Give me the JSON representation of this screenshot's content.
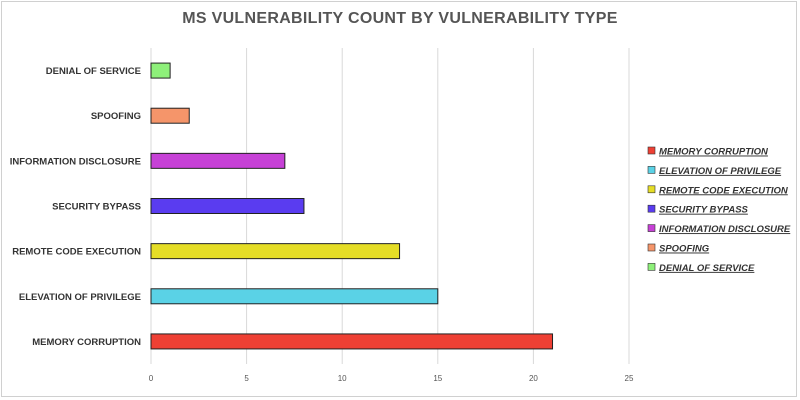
{
  "chart_data": {
    "type": "bar",
    "orientation": "horizontal",
    "title": "MS VULNERABILITY COUNT BY VULNERABILITY TYPE",
    "xlabel": "",
    "ylabel": "",
    "xlim": [
      0,
      25
    ],
    "xticks": [
      0,
      5,
      10,
      15,
      20,
      25
    ],
    "grid": true,
    "legend_position": "right",
    "categories": [
      "DENIAL OF SERVICE",
      "SPOOFING",
      "INFORMATION DISCLOSURE",
      "SECURITY BYPASS",
      "REMOTE CODE EXECUTION",
      "ELEVATION OF PRIVILEGE",
      "MEMORY CORRUPTION"
    ],
    "values": [
      1,
      2,
      7,
      8,
      13,
      15,
      21
    ],
    "colors": [
      "#8ef07a",
      "#f5956a",
      "#c641d6",
      "#5a3cf0",
      "#e5dd26",
      "#5ad2e6",
      "#ee4034"
    ],
    "legend": [
      {
        "label": "MEMORY CORRUPTION",
        "color": "#ee4034"
      },
      {
        "label": "ELEVATION OF PRIVILEGE",
        "color": "#5ad2e6"
      },
      {
        "label": "REMOTE CODE EXECUTION",
        "color": "#e5dd26"
      },
      {
        "label": "SECURITY BYPASS",
        "color": "#5a3cf0"
      },
      {
        "label": "INFORMATION DISCLOSURE",
        "color": "#c641d6"
      },
      {
        "label": "SPOOFING",
        "color": "#f5956a"
      },
      {
        "label": "DENIAL OF SERVICE",
        "color": "#8ef07a"
      }
    ]
  }
}
